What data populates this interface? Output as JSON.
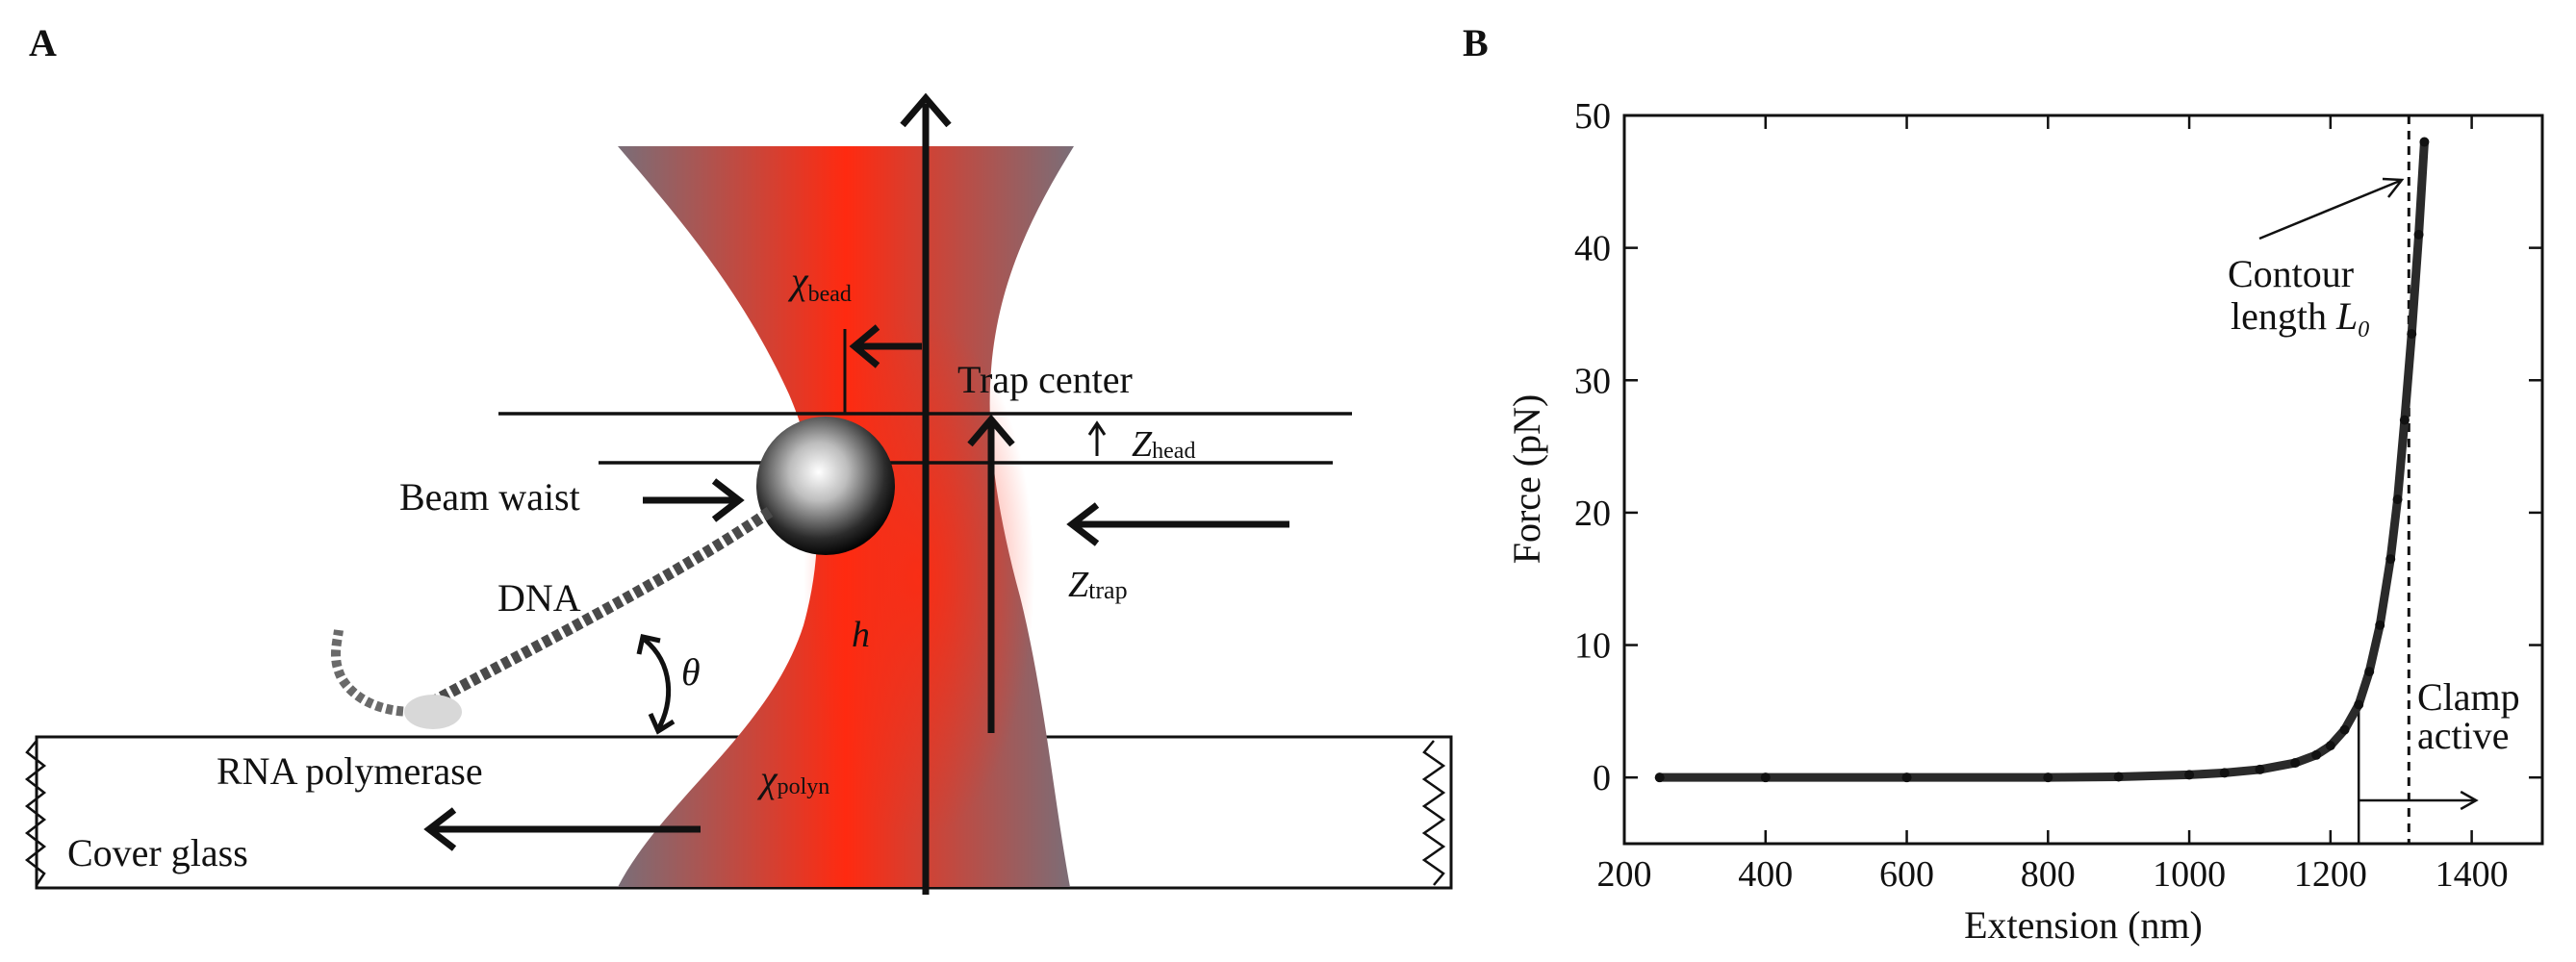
{
  "panel_a": {
    "letter": "A",
    "labels": {
      "chi_bead_main": "χ",
      "chi_bead_sub": "bead",
      "trap_center": "Trap center",
      "z_head_main": "Z",
      "z_head_sub": "head",
      "beam_waist": "Beam waist",
      "z_trap_main": "Z",
      "z_trap_sub": "trap",
      "dna": "DNA",
      "h": "h",
      "theta": "θ",
      "rna_polymerase": "RNA polymerase",
      "chi_polyn_main": "χ",
      "chi_polyn_sub": "polyn",
      "cover_glass": "Cover glass"
    },
    "colors": {
      "beam_center": "#ff2a10",
      "beam_edge": "#7a6e78",
      "arrow": "#111111"
    }
  },
  "panel_b": {
    "letter": "B",
    "annotations": {
      "contour_line1": "Contour",
      "contour_line2_text": "length ",
      "contour_symbol": "L",
      "contour_subscript": "0",
      "clamp_line1": "Clamp",
      "clamp_line2": "active"
    }
  },
  "chart_data": {
    "type": "line",
    "xlabel": "Extension (nm)",
    "ylabel": "Force (pN)",
    "xlim": [
      200,
      1500
    ],
    "ylim": [
      -5,
      50
    ],
    "xticks": [
      200,
      400,
      600,
      800,
      1000,
      1200,
      1400
    ],
    "yticks": [
      0,
      10,
      20,
      30,
      40,
      50
    ],
    "grid": false,
    "contour_length_x": 1311,
    "clamp_start_x": 1240,
    "series": [
      {
        "x": [
          250,
          400,
          600,
          800,
          900,
          1000,
          1050,
          1100,
          1150,
          1180,
          1200,
          1220,
          1240,
          1255,
          1270,
          1285,
          1295,
          1305,
          1315,
          1325,
          1333
        ],
        "y": [
          0,
          0,
          0,
          0,
          0.05,
          0.2,
          0.35,
          0.6,
          1.1,
          1.7,
          2.4,
          3.6,
          5.5,
          8.0,
          11.5,
          16.5,
          21.0,
          27.0,
          33.5,
          41.0,
          48.0
        ]
      }
    ]
  }
}
